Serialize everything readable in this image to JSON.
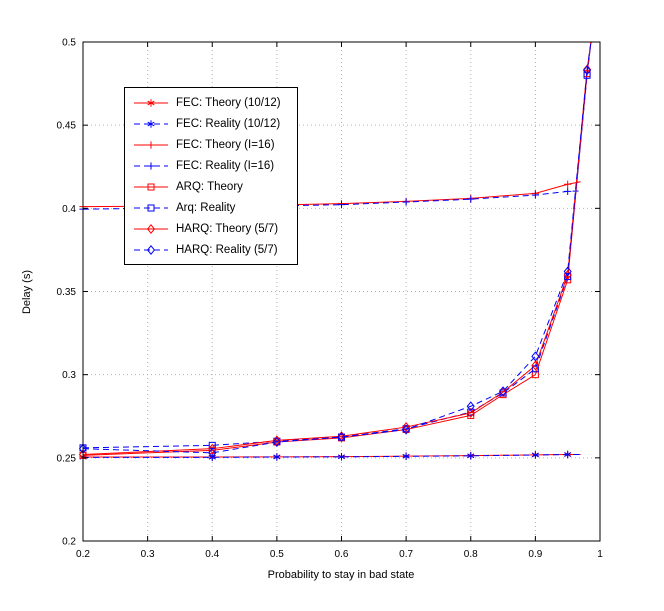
{
  "chart_data": {
    "type": "line",
    "title": "",
    "xlabel": "Probability to stay in bad state",
    "ylabel": "Delay (s)",
    "xlim": [
      0.2,
      1
    ],
    "ylim": [
      0.2,
      0.5
    ],
    "xticks": [
      0.2,
      0.3,
      0.4,
      0.5,
      0.6,
      0.7,
      0.8,
      0.9,
      1
    ],
    "yticks": [
      0.2,
      0.25,
      0.3,
      0.35,
      0.4,
      0.45,
      0.5
    ],
    "grid": true,
    "legend_position": "upper-left",
    "colors": {
      "theory": "#ff0000",
      "reality": "#0000ff"
    },
    "series": [
      {
        "name": "FEC: Theory (10/12)",
        "color": "#ff0000",
        "linestyle": "solid",
        "marker": "asterisk",
        "x": [
          0.2,
          0.4,
          0.5,
          0.6,
          0.7,
          0.8,
          0.9,
          0.95
        ],
        "y": [
          0.2505,
          0.2505,
          0.2506,
          0.2507,
          0.251,
          0.2513,
          0.2518,
          0.252
        ],
        "tail": [
          0.97,
          0.252
        ]
      },
      {
        "name": "FEC: Reality (10/12)",
        "color": "#0000ff",
        "linestyle": "dashed",
        "marker": "asterisk",
        "x": [
          0.2,
          0.4,
          0.5,
          0.6,
          0.7,
          0.8,
          0.9,
          0.95
        ],
        "y": [
          0.2503,
          0.2503,
          0.2505,
          0.2506,
          0.2509,
          0.2512,
          0.2517,
          0.252
        ],
        "tail": [
          0.97,
          0.252
        ]
      },
      {
        "name": "FEC: Theory (I=16)",
        "color": "#ff0000",
        "linestyle": "solid",
        "marker": "plus",
        "x": [
          0.2,
          0.4,
          0.5,
          0.6,
          0.7,
          0.8,
          0.9,
          0.95
        ],
        "y": [
          0.401,
          0.4015,
          0.402,
          0.4028,
          0.4042,
          0.406,
          0.409,
          0.4145
        ],
        "tail": [
          0.97,
          0.416
        ]
      },
      {
        "name": "FEC: Reality (I=16)",
        "color": "#0000ff",
        "linestyle": "dashed",
        "marker": "plus",
        "x": [
          0.2,
          0.4,
          0.5,
          0.6,
          0.7,
          0.8,
          0.9,
          0.95
        ],
        "y": [
          0.3995,
          0.4005,
          0.4015,
          0.4022,
          0.4038,
          0.4055,
          0.408,
          0.4102
        ],
        "tail": [
          0.97,
          0.4105
        ]
      },
      {
        "name": "ARQ: Theory",
        "color": "#ff0000",
        "linestyle": "solid",
        "marker": "square",
        "x": [
          0.2,
          0.4,
          0.5,
          0.6,
          0.7,
          0.8,
          0.85,
          0.9,
          0.95,
          0.98
        ],
        "y": [
          0.2515,
          0.2545,
          0.2595,
          0.262,
          0.267,
          0.2755,
          0.288,
          0.3,
          0.357,
          0.481
        ],
        "tail": [
          0.986,
          0.5
        ]
      },
      {
        "name": "Arq: Reality",
        "color": "#0000ff",
        "linestyle": "dashed",
        "marker": "square",
        "x": [
          0.2,
          0.4,
          0.5,
          0.6,
          0.7,
          0.8,
          0.85,
          0.9,
          0.95,
          0.98
        ],
        "y": [
          0.256,
          0.2575,
          0.26,
          0.2625,
          0.2675,
          0.2775,
          0.289,
          0.3035,
          0.359,
          0.48
        ],
        "tail": [
          0.986,
          0.5
        ]
      },
      {
        "name": "HARQ: Theory (5/7)",
        "color": "#ff0000",
        "linestyle": "solid",
        "marker": "diamond",
        "x": [
          0.2,
          0.4,
          0.5,
          0.6,
          0.7,
          0.8,
          0.85,
          0.9,
          0.95,
          0.98
        ],
        "y": [
          0.252,
          0.2555,
          0.2605,
          0.263,
          0.2685,
          0.277,
          0.2895,
          0.3055,
          0.36,
          0.4835
        ],
        "tail": [
          0.986,
          0.5
        ]
      },
      {
        "name": "HARQ: Reality (5/7)",
        "color": "#0000ff",
        "linestyle": "dashed",
        "marker": "diamond",
        "x": [
          0.2,
          0.4,
          0.5,
          0.6,
          0.7,
          0.8,
          0.85,
          0.9,
          0.95,
          0.98
        ],
        "y": [
          0.2555,
          0.253,
          0.2595,
          0.2625,
          0.267,
          0.281,
          0.29,
          0.311,
          0.362,
          0.483
        ],
        "tail": [
          0.986,
          0.5
        ]
      }
    ]
  }
}
